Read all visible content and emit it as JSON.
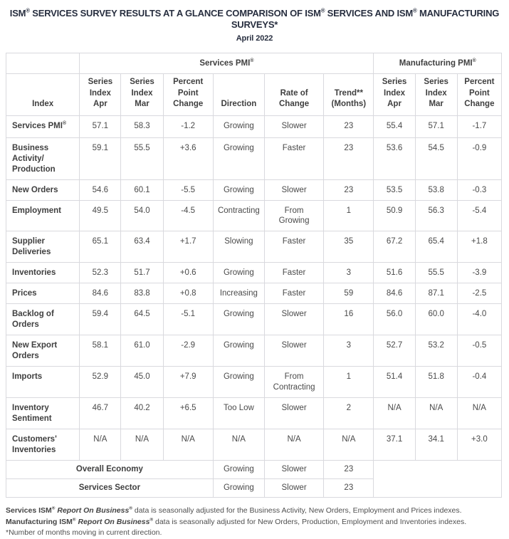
{
  "header": {
    "title": "ISM® SERVICES SURVEY RESULTS AT A GLANCE COMPARISON OF ISM® SERVICES AND ISM® MANUFACTURING SURVEYS*",
    "subtitle": "April 2022"
  },
  "table": {
    "group_headers": {
      "services": "Services PMI®",
      "manufacturing": "Manufacturing PMI®"
    },
    "column_headers": [
      "Index",
      "Series\nIndex\nApr",
      "Series\nIndex\nMar",
      "Percent\nPoint\nChange",
      "Direction",
      "Rate of\nChange",
      "Trend**\n(Months)",
      "Series\nIndex\nApr",
      "Series\nIndex\nMar",
      "Percent\nPoint\nChange"
    ],
    "rows": [
      {
        "label": "Services PMI®",
        "values": [
          "57.1",
          "58.3",
          "-1.2",
          "Growing",
          "Slower",
          "23",
          "55.4",
          "57.1",
          "-1.7"
        ]
      },
      {
        "label": "Business Activity/\nProduction",
        "values": [
          "59.1",
          "55.5",
          "+3.6",
          "Growing",
          "Faster",
          "23",
          "53.6",
          "54.5",
          "-0.9"
        ]
      },
      {
        "label": "New Orders",
        "values": [
          "54.6",
          "60.1",
          "-5.5",
          "Growing",
          "Slower",
          "23",
          "53.5",
          "53.8",
          "-0.3"
        ]
      },
      {
        "label": "Employment",
        "values": [
          "49.5",
          "54.0",
          "-4.5",
          "Contracting",
          "From\nGrowing",
          "1",
          "50.9",
          "56.3",
          "-5.4"
        ]
      },
      {
        "label": "Supplier\nDeliveries",
        "values": [
          "65.1",
          "63.4",
          "+1.7",
          "Slowing",
          "Faster",
          "35",
          "67.2",
          "65.4",
          "+1.8"
        ]
      },
      {
        "label": "Inventories",
        "values": [
          "52.3",
          "51.7",
          "+0.6",
          "Growing",
          "Faster",
          "3",
          "51.6",
          "55.5",
          "-3.9"
        ]
      },
      {
        "label": "Prices",
        "values": [
          "84.6",
          "83.8",
          "+0.8",
          "Increasing",
          "Faster",
          "59",
          "84.6",
          "87.1",
          "-2.5"
        ]
      },
      {
        "label": "Backlog of\nOrders",
        "values": [
          "59.4",
          "64.5",
          "-5.1",
          "Growing",
          "Slower",
          "16",
          "56.0",
          "60.0",
          "-4.0"
        ]
      },
      {
        "label": "New Export\nOrders",
        "values": [
          "58.1",
          "61.0",
          "-2.9",
          "Growing",
          "Slower",
          "3",
          "52.7",
          "53.2",
          "-0.5"
        ]
      },
      {
        "label": "Imports",
        "values": [
          "52.9",
          "45.0",
          "+7.9",
          "Growing",
          "From\nContracting",
          "1",
          "51.4",
          "51.8",
          "-0.4"
        ]
      },
      {
        "label": "Inventory\nSentiment",
        "values": [
          "46.7",
          "40.2",
          "+6.5",
          "Too Low",
          "Slower",
          "2",
          "N/A",
          "N/A",
          "N/A"
        ]
      },
      {
        "label": "Customers'\nInventories",
        "values": [
          "N/A",
          "N/A",
          "N/A",
          "N/A",
          "N/A",
          "N/A",
          "37.1",
          "34.1",
          "+3.0"
        ]
      }
    ],
    "summary_rows": [
      {
        "label": "Overall Economy",
        "values": [
          "Growing",
          "Slower",
          "23"
        ]
      },
      {
        "label": "Services Sector",
        "values": [
          "Growing",
          "Slower",
          "23"
        ]
      }
    ]
  },
  "footnote": {
    "seg1": "Services ISM® ",
    "seg2": "Report On Business®",
    "seg3": " data is seasonally adjusted for the Business Activity, New Orders, Employment and Prices indexes. ",
    "seg4": "Manufacturing ISM® ",
    "seg5": "Report On Business®",
    "seg6": " data is seasonally adjusted for New Orders, Production, Employment and Inventories indexes.",
    "line2": "*Number of months moving in current direction."
  },
  "colors": {
    "title_text": "#272e3f",
    "table_text": "#4a4a4a",
    "label_text": "#3f3f3f",
    "border": "#d9d9de",
    "outer_border": "#cfd0da",
    "background": "#ffffff"
  }
}
